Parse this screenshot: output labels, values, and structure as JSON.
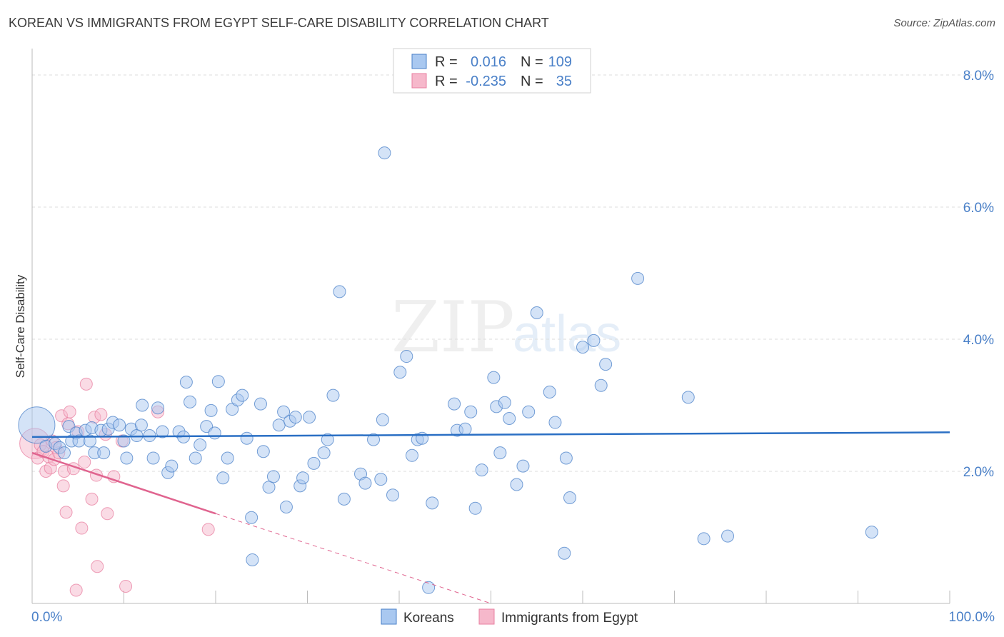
{
  "header": {
    "title": "KOREAN VS IMMIGRANTS FROM EGYPT SELF-CARE DISABILITY CORRELATION CHART",
    "source": "Source: ZipAtlas.com"
  },
  "watermark": {
    "zip": "ZIP",
    "atlas": "atlas"
  },
  "colors": {
    "blue": "#4a80c8",
    "blue_fill": "#a9c8f0",
    "blue_line": "#2a6fc4",
    "pink": "#e87fa0",
    "pink_fill": "#f6b8cb",
    "pink_line": "#e0648f",
    "grid": "#dddddd",
    "axis": "#bbbbbb"
  },
  "stats": {
    "rows": [
      {
        "r_label": "R =",
        "r_value": "0.016",
        "n_label": "N =",
        "n_value": "109"
      },
      {
        "r_label": "R =",
        "r_value": "-0.235",
        "n_label": "N =",
        "n_value": "35"
      }
    ]
  },
  "legend": {
    "items": [
      {
        "label": "Koreans"
      },
      {
        "label": "Immigrants from Egypt"
      }
    ]
  },
  "chart_data": {
    "type": "scatter",
    "title": "KOREAN VS IMMIGRANTS FROM EGYPT SELF-CARE DISABILITY CORRELATION CHART",
    "xlabel": "",
    "ylabel": "Self-Care Disability",
    "xlim": [
      0,
      100
    ],
    "ylim": [
      0,
      8.4
    ],
    "x_tick_labels": [
      "0.0%",
      "100.0%"
    ],
    "y_ticks": [
      2,
      4,
      6,
      8
    ],
    "y_tick_labels": [
      "2.0%",
      "4.0%",
      "6.0%",
      "8.0%"
    ],
    "grid": true,
    "series": [
      {
        "name": "Koreans",
        "r": 0.016,
        "n": 109,
        "trend": {
          "x": [
            0,
            100
          ],
          "y": [
            2.52,
            2.59
          ]
        },
        "points": [
          {
            "x": 0.5,
            "y": 2.7,
            "s": 3
          },
          {
            "x": 1.5,
            "y": 2.38
          },
          {
            "x": 2.5,
            "y": 2.42
          },
          {
            "x": 3.0,
            "y": 2.36
          },
          {
            "x": 3.5,
            "y": 2.28
          },
          {
            "x": 4.0,
            "y": 2.68
          },
          {
            "x": 4.3,
            "y": 2.46
          },
          {
            "x": 4.8,
            "y": 2.58
          },
          {
            "x": 5.1,
            "y": 2.46
          },
          {
            "x": 5.8,
            "y": 2.62
          },
          {
            "x": 6.3,
            "y": 2.46
          },
          {
            "x": 6.5,
            "y": 2.66
          },
          {
            "x": 6.8,
            "y": 2.28
          },
          {
            "x": 7.5,
            "y": 2.62
          },
          {
            "x": 7.8,
            "y": 2.28
          },
          {
            "x": 8.3,
            "y": 2.64
          },
          {
            "x": 8.8,
            "y": 2.74
          },
          {
            "x": 9.5,
            "y": 2.7
          },
          {
            "x": 10.0,
            "y": 2.46
          },
          {
            "x": 10.3,
            "y": 2.2
          },
          {
            "x": 10.8,
            "y": 2.64
          },
          {
            "x": 11.4,
            "y": 2.54
          },
          {
            "x": 11.9,
            "y": 2.7
          },
          {
            "x": 12.0,
            "y": 3.0
          },
          {
            "x": 12.8,
            "y": 2.54
          },
          {
            "x": 13.2,
            "y": 2.2
          },
          {
            "x": 13.7,
            "y": 2.96
          },
          {
            "x": 14.2,
            "y": 2.6
          },
          {
            "x": 14.8,
            "y": 1.98
          },
          {
            "x": 15.2,
            "y": 2.08
          },
          {
            "x": 16.0,
            "y": 2.6
          },
          {
            "x": 16.5,
            "y": 2.52
          },
          {
            "x": 16.8,
            "y": 3.35
          },
          {
            "x": 17.2,
            "y": 3.05
          },
          {
            "x": 17.8,
            "y": 2.2
          },
          {
            "x": 18.3,
            "y": 2.4
          },
          {
            "x": 19.0,
            "y": 2.68
          },
          {
            "x": 19.5,
            "y": 2.92
          },
          {
            "x": 19.9,
            "y": 2.58
          },
          {
            "x": 20.3,
            "y": 3.36
          },
          {
            "x": 20.8,
            "y": 1.9
          },
          {
            "x": 21.3,
            "y": 2.2
          },
          {
            "x": 21.8,
            "y": 2.94
          },
          {
            "x": 22.4,
            "y": 3.08
          },
          {
            "x": 22.9,
            "y": 3.15
          },
          {
            "x": 23.4,
            "y": 2.5
          },
          {
            "x": 23.9,
            "y": 1.3
          },
          {
            "x": 24.0,
            "y": 0.66
          },
          {
            "x": 24.9,
            "y": 3.02
          },
          {
            "x": 25.2,
            "y": 2.3
          },
          {
            "x": 25.8,
            "y": 1.76
          },
          {
            "x": 26.3,
            "y": 1.92
          },
          {
            "x": 26.9,
            "y": 2.7
          },
          {
            "x": 27.4,
            "y": 2.9
          },
          {
            "x": 27.7,
            "y": 1.46
          },
          {
            "x": 28.1,
            "y": 2.76
          },
          {
            "x": 28.7,
            "y": 2.82
          },
          {
            "x": 29.2,
            "y": 1.78
          },
          {
            "x": 29.5,
            "y": 1.9
          },
          {
            "x": 30.2,
            "y": 2.82
          },
          {
            "x": 30.7,
            "y": 2.12
          },
          {
            "x": 31.8,
            "y": 2.28
          },
          {
            "x": 32.2,
            "y": 2.48
          },
          {
            "x": 32.8,
            "y": 3.15
          },
          {
            "x": 33.5,
            "y": 4.72
          },
          {
            "x": 34.0,
            "y": 1.58
          },
          {
            "x": 35.8,
            "y": 1.96
          },
          {
            "x": 36.3,
            "y": 1.82
          },
          {
            "x": 37.2,
            "y": 2.48
          },
          {
            "x": 38.0,
            "y": 1.88
          },
          {
            "x": 38.2,
            "y": 2.78
          },
          {
            "x": 38.4,
            "y": 6.82
          },
          {
            "x": 39.3,
            "y": 1.64
          },
          {
            "x": 40.1,
            "y": 3.5
          },
          {
            "x": 40.8,
            "y": 3.74
          },
          {
            "x": 41.4,
            "y": 2.24
          },
          {
            "x": 42.0,
            "y": 2.48
          },
          {
            "x": 43.2,
            "y": 0.24
          },
          {
            "x": 43.6,
            "y": 1.52
          },
          {
            "x": 46.0,
            "y": 3.02
          },
          {
            "x": 46.3,
            "y": 2.62
          },
          {
            "x": 47.2,
            "y": 2.64
          },
          {
            "x": 47.8,
            "y": 2.9
          },
          {
            "x": 48.3,
            "y": 1.44
          },
          {
            "x": 49.0,
            "y": 2.02
          },
          {
            "x": 50.3,
            "y": 3.42
          },
          {
            "x": 50.6,
            "y": 2.98
          },
          {
            "x": 51.0,
            "y": 2.28
          },
          {
            "x": 51.5,
            "y": 3.04
          },
          {
            "x": 52.0,
            "y": 2.8
          },
          {
            "x": 52.8,
            "y": 1.8
          },
          {
            "x": 53.5,
            "y": 2.08
          },
          {
            "x": 54.1,
            "y": 2.9
          },
          {
            "x": 55.0,
            "y": 4.4
          },
          {
            "x": 56.4,
            "y": 3.2
          },
          {
            "x": 57.0,
            "y": 2.74
          },
          {
            "x": 58.0,
            "y": 0.76
          },
          {
            "x": 58.2,
            "y": 2.2
          },
          {
            "x": 58.6,
            "y": 1.6
          },
          {
            "x": 60.0,
            "y": 3.88
          },
          {
            "x": 61.2,
            "y": 3.98
          },
          {
            "x": 62.0,
            "y": 3.3
          },
          {
            "x": 62.5,
            "y": 3.62
          },
          {
            "x": 66.0,
            "y": 4.92
          },
          {
            "x": 71.5,
            "y": 3.12
          },
          {
            "x": 73.2,
            "y": 0.98
          },
          {
            "x": 75.8,
            "y": 1.02
          },
          {
            "x": 91.5,
            "y": 1.08
          },
          {
            "x": 42.5,
            "y": 2.5
          }
        ]
      },
      {
        "name": "Immigrants from Egypt",
        "r": -0.235,
        "n": 35,
        "trend": {
          "x": [
            0,
            20
          ],
          "y": [
            2.28,
            1.36
          ]
        },
        "trend_dashed": {
          "x": [
            20,
            50
          ],
          "y": [
            1.36,
            0.0
          ]
        },
        "points": [
          {
            "x": 0.3,
            "y": 2.42,
            "s": 2.5
          },
          {
            "x": 0.6,
            "y": 2.2
          },
          {
            "x": 0.9,
            "y": 2.4
          },
          {
            "x": 1.2,
            "y": 2.3
          },
          {
            "x": 1.5,
            "y": 2.0
          },
          {
            "x": 1.8,
            "y": 2.22
          },
          {
            "x": 2.0,
            "y": 2.05
          },
          {
            "x": 2.2,
            "y": 2.46
          },
          {
            "x": 2.4,
            "y": 2.18
          },
          {
            "x": 2.6,
            "y": 2.36
          },
          {
            "x": 2.9,
            "y": 2.28
          },
          {
            "x": 3.2,
            "y": 2.84
          },
          {
            "x": 3.5,
            "y": 2.0
          },
          {
            "x": 3.7,
            "y": 1.38
          },
          {
            "x": 3.9,
            "y": 2.72
          },
          {
            "x": 4.1,
            "y": 2.9
          },
          {
            "x": 4.5,
            "y": 2.04
          },
          {
            "x": 4.8,
            "y": 0.2
          },
          {
            "x": 5.0,
            "y": 2.6
          },
          {
            "x": 5.4,
            "y": 1.14
          },
          {
            "x": 5.7,
            "y": 2.14
          },
          {
            "x": 5.9,
            "y": 3.32
          },
          {
            "x": 6.5,
            "y": 1.58
          },
          {
            "x": 6.8,
            "y": 2.82
          },
          {
            "x": 7.1,
            "y": 0.56
          },
          {
            "x": 7.5,
            "y": 2.86
          },
          {
            "x": 8.0,
            "y": 2.56
          },
          {
            "x": 8.2,
            "y": 1.36
          },
          {
            "x": 8.9,
            "y": 1.92
          },
          {
            "x": 9.8,
            "y": 2.46
          },
          {
            "x": 10.2,
            "y": 0.26
          },
          {
            "x": 13.7,
            "y": 2.9
          },
          {
            "x": 19.2,
            "y": 1.12
          },
          {
            "x": 3.4,
            "y": 1.78
          },
          {
            "x": 7.0,
            "y": 1.94
          }
        ]
      }
    ]
  }
}
